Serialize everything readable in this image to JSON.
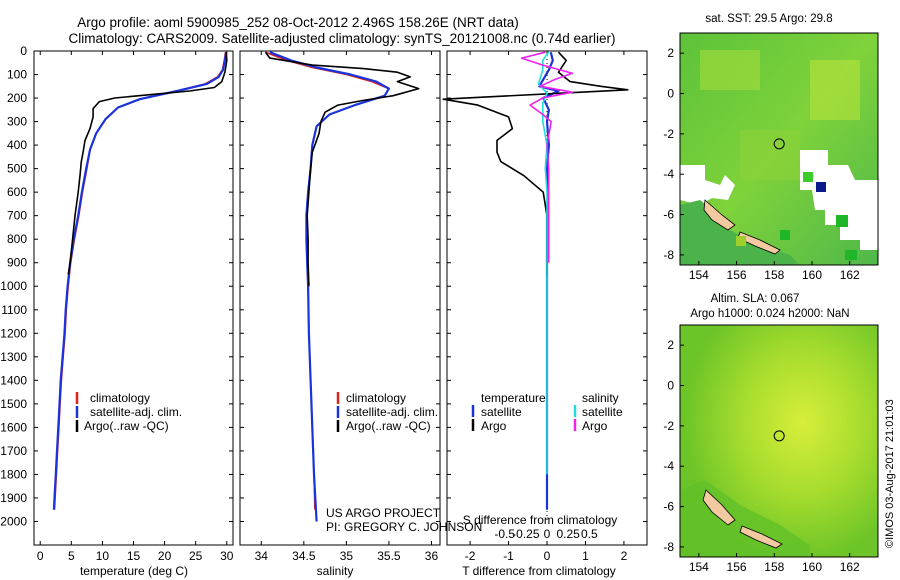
{
  "header": {
    "title_line1": "Argo profile: aoml 5900985_252 08-Oct-2012 2.496S 158.26E (NRT data)",
    "title_line2": "Climatology: CARS2009. Satellite-adjusted climatology: synTS_20121008.nc (0.74d earlier)"
  },
  "colors": {
    "climatology": "#dd2222",
    "satellite": "#1a33dd",
    "argo": "#000000",
    "sal_satellite": "#22dddd",
    "sal_argo": "#ee22ee"
  },
  "chart_data": [
    {
      "type": "line",
      "id": "temperature",
      "xlabel": "temperature (deg C)",
      "ylabel": "",
      "xlim": [
        -1,
        31
      ],
      "ylim": [
        2100,
        0
      ],
      "xticks": [
        0,
        5,
        10,
        15,
        20,
        25,
        30
      ],
      "yticks": [
        0,
        100,
        200,
        300,
        400,
        500,
        600,
        700,
        800,
        900,
        1000,
        1100,
        1200,
        1300,
        1400,
        1500,
        1600,
        1700,
        1800,
        1900,
        2000
      ],
      "legend": [
        "climatology",
        "satellite-adj. clim.",
        "Argo(..raw -QC)"
      ],
      "series": [
        {
          "name": "climatology",
          "color_key": "climatology",
          "points": [
            [
              29.8,
              5
            ],
            [
              29.6,
              40
            ],
            [
              29.3,
              80
            ],
            [
              28.5,
              110
            ],
            [
              26.5,
              140
            ],
            [
              22,
              170
            ],
            [
              16,
              205
            ],
            [
              12.5,
              240
            ],
            [
              10.5,
              290
            ],
            [
              9,
              350
            ],
            [
              8,
              420
            ],
            [
              7.5,
              500
            ],
            [
              6.8,
              600
            ],
            [
              6.2,
              700
            ],
            [
              5.5,
              800
            ],
            [
              4.9,
              900
            ],
            [
              4.5,
              1000
            ],
            [
              4.2,
              1100
            ],
            [
              4,
              1200
            ],
            [
              3.7,
              1300
            ],
            [
              3.4,
              1400
            ],
            [
              3.2,
              1500
            ],
            [
              3,
              1600
            ],
            [
              2.8,
              1700
            ],
            [
              2.6,
              1800
            ],
            [
              2.4,
              1900
            ],
            [
              2.3,
              1950
            ]
          ]
        },
        {
          "name": "satellite-adj. clim.",
          "color_key": "satellite",
          "points": [
            [
              29.9,
              5
            ],
            [
              29.7,
              40
            ],
            [
              29.4,
              80
            ],
            [
              28.7,
              110
            ],
            [
              26.8,
              140
            ],
            [
              22,
              170
            ],
            [
              16,
              205
            ],
            [
              12.5,
              240
            ],
            [
              10.5,
              290
            ],
            [
              9,
              350
            ],
            [
              8,
              420
            ],
            [
              7.4,
              500
            ],
            [
              6.7,
              600
            ],
            [
              6.1,
              700
            ],
            [
              5.4,
              800
            ],
            [
              4.8,
              900
            ],
            [
              4.4,
              1000
            ],
            [
              4.1,
              1100
            ],
            [
              3.9,
              1200
            ],
            [
              3.6,
              1300
            ],
            [
              3.3,
              1400
            ],
            [
              3.1,
              1500
            ],
            [
              2.9,
              1600
            ],
            [
              2.7,
              1700
            ],
            [
              2.5,
              1800
            ],
            [
              2.3,
              1900
            ],
            [
              2.2,
              1950
            ]
          ]
        },
        {
          "name": "Argo(..raw -QC)",
          "color_key": "argo",
          "points": [
            [
              29.9,
              5
            ],
            [
              30,
              40
            ],
            [
              29.7,
              90
            ],
            [
              29.2,
              130
            ],
            [
              28,
              155
            ],
            [
              24,
              170
            ],
            [
              20,
              180
            ],
            [
              12,
              200
            ],
            [
              9.5,
              215
            ],
            [
              8.5,
              245
            ],
            [
              8.5,
              280
            ],
            [
              8,
              330
            ],
            [
              7.2,
              380
            ],
            [
              6.9,
              430
            ],
            [
              6.6,
              470
            ],
            [
              6.4,
              530
            ],
            [
              6.1,
              600
            ],
            [
              5.6,
              700
            ],
            [
              5.2,
              800
            ],
            [
              4.8,
              900
            ],
            [
              4.5,
              950
            ]
          ]
        }
      ]
    },
    {
      "type": "line",
      "id": "salinity",
      "xlabel": "salinity",
      "xlim": [
        33.75,
        36.1
      ],
      "ylim": [
        2100,
        0
      ],
      "xticks": [
        34,
        34.5,
        35,
        35.5,
        36
      ],
      "xticklabels": [
        "34",
        "34.5",
        "35",
        "35.5",
        "36"
      ],
      "legend": [
        "climatology",
        "satellite-adj. clim.",
        "Argo(..raw -QC)"
      ],
      "annotation": [
        "US ARGO PROJECT",
        "PI: GREGORY C. JOHNSON"
      ],
      "series": [
        {
          "name": "climatology",
          "color_key": "climatology",
          "points": [
            [
              34.05,
              5
            ],
            [
              34.3,
              40
            ],
            [
              34.6,
              70
            ],
            [
              35.0,
              100
            ],
            [
              35.3,
              130
            ],
            [
              35.5,
              160
            ],
            [
              35.45,
              190
            ],
            [
              35.1,
              230
            ],
            [
              34.8,
              270
            ],
            [
              34.65,
              320
            ],
            [
              34.6,
              400
            ],
            [
              34.58,
              500
            ],
            [
              34.55,
              600
            ],
            [
              34.53,
              700
            ],
            [
              34.53,
              800
            ],
            [
              34.54,
              900
            ],
            [
              34.55,
              1000
            ],
            [
              34.56,
              1200
            ],
            [
              34.58,
              1400
            ],
            [
              34.6,
              1600
            ],
            [
              34.62,
              1800
            ],
            [
              34.63,
              1950
            ]
          ]
        },
        {
          "name": "satellite-adj. clim.",
          "color_key": "satellite",
          "points": [
            [
              34.1,
              5
            ],
            [
              34.35,
              40
            ],
            [
              34.65,
              70
            ],
            [
              35.05,
              100
            ],
            [
              35.35,
              130
            ],
            [
              35.5,
              160
            ],
            [
              35.45,
              190
            ],
            [
              35.1,
              230
            ],
            [
              34.8,
              270
            ],
            [
              34.65,
              320
            ],
            [
              34.6,
              400
            ],
            [
              34.58,
              500
            ],
            [
              34.55,
              600
            ],
            [
              34.53,
              700
            ],
            [
              34.53,
              800
            ],
            [
              34.54,
              900
            ],
            [
              34.55,
              1000
            ],
            [
              34.56,
              1200
            ],
            [
              34.58,
              1400
            ],
            [
              34.6,
              1600
            ],
            [
              34.62,
              1800
            ],
            [
              34.65,
              2000
            ]
          ]
        },
        {
          "name": "Argo(..raw -QC)",
          "color_key": "argo",
          "points": [
            [
              34.05,
              5
            ],
            [
              34.1,
              30
            ],
            [
              34.6,
              60
            ],
            [
              35.2,
              75
            ],
            [
              35.6,
              90
            ],
            [
              35.75,
              110
            ],
            [
              35.6,
              130
            ],
            [
              35.85,
              160
            ],
            [
              35.55,
              190
            ],
            [
              35.2,
              210
            ],
            [
              34.9,
              230
            ],
            [
              34.75,
              260
            ],
            [
              34.7,
              300
            ],
            [
              34.68,
              350
            ],
            [
              34.6,
              430
            ],
            [
              34.58,
              500
            ],
            [
              34.56,
              600
            ],
            [
              34.54,
              700
            ],
            [
              34.55,
              800
            ],
            [
              34.55,
              900
            ],
            [
              34.56,
              1000
            ]
          ]
        }
      ]
    },
    {
      "type": "line",
      "id": "differences",
      "xlabel": "T difference from climatology",
      "xlabel_top": "S difference from climatology",
      "xlim": [
        -2.6,
        2.6
      ],
      "ylim": [
        2100,
        0
      ],
      "xticks": [
        -2,
        -1,
        0,
        1,
        2
      ],
      "top_ticks": [
        -0.5,
        -0.25,
        0,
        0.25,
        0.5
      ],
      "top_ticklabels": [
        "-0.5",
        "-0.25",
        "0",
        "0.25",
        "0.5"
      ],
      "legend_left_title": "temperature",
      "legend_right_title": "salinity",
      "legend_left": [
        "satellite",
        "Argo"
      ],
      "legend_right": [
        "satellite",
        "Argo"
      ],
      "series": [
        {
          "name": "temperature satellite",
          "color_key": "satellite",
          "points": [
            [
              0.1,
              5
            ],
            [
              0.15,
              40
            ],
            [
              0.05,
              80
            ],
            [
              -0.2,
              150
            ],
            [
              0.3,
              170
            ],
            [
              -0.1,
              200
            ],
            [
              0.05,
              250
            ],
            [
              0,
              300
            ],
            [
              0.05,
              400
            ],
            [
              0,
              500
            ],
            [
              0.02,
              600
            ],
            [
              0,
              700
            ],
            [
              0,
              1000
            ],
            [
              0,
              1400
            ],
            [
              0,
              1800
            ],
            [
              0,
              1950
            ]
          ]
        },
        {
          "name": "temperature Argo",
          "color_key": "argo",
          "points": [
            [
              0.3,
              5
            ],
            [
              0.5,
              40
            ],
            [
              0.3,
              90
            ],
            [
              0.6,
              130
            ],
            [
              1.4,
              150
            ],
            [
              2.1,
              165
            ],
            [
              0.3,
              180
            ],
            [
              -2.7,
              205
            ],
            [
              -1.8,
              230
            ],
            [
              -1.0,
              280
            ],
            [
              -0.9,
              330
            ],
            [
              -1.3,
              380
            ],
            [
              -1.3,
              430
            ],
            [
              -1.2,
              470
            ],
            [
              -0.6,
              530
            ],
            [
              -0.1,
              600
            ],
            [
              0,
              700
            ],
            [
              0,
              800
            ],
            [
              0,
              900
            ],
            [
              0,
              950
            ]
          ]
        },
        {
          "name": "salinity satellite",
          "color_key": "sal_satellite",
          "points": [
            [
              0.02,
              5
            ],
            [
              -0.05,
              40
            ],
            [
              -0.05,
              80
            ],
            [
              -0.1,
              140
            ],
            [
              0,
              180
            ],
            [
              -0.05,
              220
            ],
            [
              -0.05,
              300
            ],
            [
              0,
              400
            ],
            [
              -0.02,
              500
            ],
            [
              0,
              600
            ],
            [
              0,
              800
            ],
            [
              0,
              1200
            ],
            [
              0,
              1600
            ],
            [
              0,
              1800
            ]
          ]
        },
        {
          "name": "salinity Argo",
          "color_key": "sal_argo",
          "points": [
            [
              -0.02,
              5
            ],
            [
              -0.3,
              30
            ],
            [
              -0.05,
              60
            ],
            [
              0.1,
              75
            ],
            [
              0.3,
              95
            ],
            [
              0.1,
              120
            ],
            [
              -0.08,
              150
            ],
            [
              0.3,
              175
            ],
            [
              -0.05,
              200
            ],
            [
              -0.2,
              230
            ],
            [
              -0.05,
              270
            ],
            [
              0.05,
              300
            ],
            [
              0,
              400
            ],
            [
              0.02,
              500
            ],
            [
              0.02,
              600
            ],
            [
              0.02,
              700
            ],
            [
              0.02,
              800
            ],
            [
              0.02,
              900
            ]
          ]
        }
      ]
    },
    {
      "type": "heatmap",
      "id": "sst_map",
      "title": "sat. SST: 29.5 Argo: 29.8",
      "xlim": [
        153,
        163.5
      ],
      "ylim": [
        -8.5,
        3
      ],
      "xticks": [
        154,
        156,
        158,
        160,
        162
      ],
      "yticks": [
        2,
        0,
        -2,
        -4,
        -6,
        -8
      ],
      "marker": [
        158.26,
        -2.496
      ]
    },
    {
      "type": "heatmap",
      "id": "sla_map",
      "title_line1": "Altim. SLA: 0.067",
      "title_line2": "Argo h1000: 0.024 h2000: NaN",
      "xlim": [
        153,
        163.5
      ],
      "ylim": [
        -8.5,
        3
      ],
      "xticks": [
        154,
        156,
        158,
        160,
        162
      ],
      "yticks": [
        2,
        0,
        -2,
        -4,
        -6,
        -8
      ],
      "marker": [
        158.26,
        -2.496
      ]
    }
  ],
  "footer": {
    "stamp": "©IMOS 03-Aug-2017 21:01:03"
  }
}
